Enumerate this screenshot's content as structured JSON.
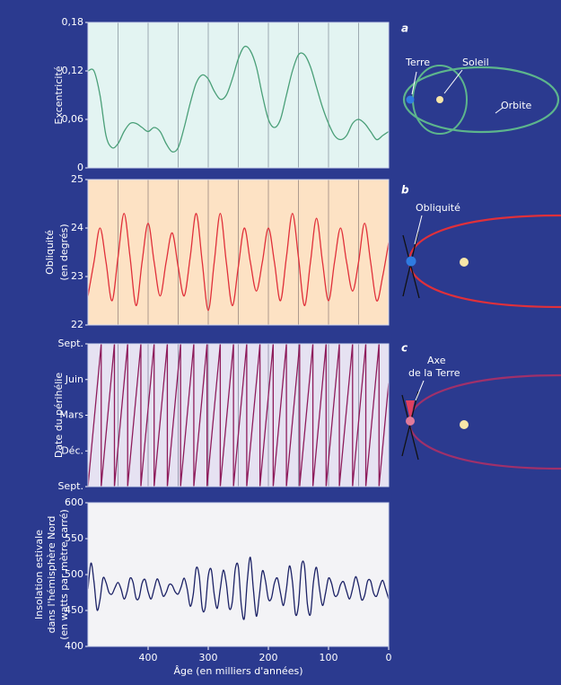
{
  "chart_data": [
    {
      "type": "line",
      "smooth": true,
      "panel": "a",
      "ylabel": [
        "Excentricité"
      ],
      "background": "#e3f4f2",
      "color": "#4a9f78",
      "grid_color": "#8a97a0",
      "xlim": [
        500,
        0
      ],
      "xgrid": [
        450,
        400,
        350,
        300,
        250,
        200,
        150,
        100,
        50
      ],
      "ylim": [
        0,
        0.18
      ],
      "yticks": [
        0,
        {
          "value": 0.06,
          "label": "0,06"
        },
        {
          "value": 0.12,
          "label": "0,12"
        },
        {
          "value": 0.18,
          "label": "0,18"
        }
      ],
      "annotations": [
        "Terre",
        "Soleil",
        "Orbite"
      ],
      "x": [
        500,
        490,
        480,
        470,
        460,
        450,
        440,
        430,
        420,
        410,
        400,
        390,
        380,
        370,
        360,
        350,
        340,
        330,
        320,
        310,
        300,
        290,
        280,
        270,
        260,
        250,
        240,
        230,
        220,
        210,
        200,
        190,
        180,
        170,
        160,
        150,
        140,
        130,
        120,
        110,
        100,
        90,
        80,
        70,
        60,
        50,
        40,
        30,
        20,
        10,
        0
      ],
      "values": [
        0.12,
        0.12,
        0.09,
        0.04,
        0.025,
        0.03,
        0.045,
        0.055,
        0.055,
        0.05,
        0.045,
        0.05,
        0.045,
        0.03,
        0.02,
        0.025,
        0.05,
        0.08,
        0.105,
        0.115,
        0.11,
        0.095,
        0.085,
        0.09,
        0.11,
        0.135,
        0.15,
        0.145,
        0.125,
        0.09,
        0.06,
        0.05,
        0.06,
        0.09,
        0.12,
        0.14,
        0.14,
        0.125,
        0.1,
        0.075,
        0.055,
        0.04,
        0.035,
        0.04,
        0.055,
        0.06,
        0.055,
        0.045,
        0.035,
        0.04,
        0.045
      ]
    },
    {
      "type": "line",
      "smooth": true,
      "panel": "b",
      "ylabel": [
        "Obliquité",
        "(en degrés)"
      ],
      "background": "#fde2c4",
      "color": "#e0303a",
      "grid_color": "#9a8a80",
      "xlim": [
        500,
        0
      ],
      "xgrid": [
        450,
        400,
        350,
        300,
        250,
        200,
        150,
        100,
        50
      ],
      "ylim": [
        22,
        25
      ],
      "yticks": [
        22,
        23,
        24,
        25
      ],
      "annotations": [
        "Obliquité"
      ],
      "x": [
        500,
        490,
        480,
        470,
        460,
        450,
        440,
        430,
        420,
        410,
        400,
        390,
        380,
        370,
        360,
        350,
        340,
        330,
        320,
        310,
        300,
        290,
        280,
        270,
        260,
        250,
        240,
        230,
        220,
        210,
        200,
        190,
        180,
        170,
        160,
        150,
        140,
        130,
        120,
        110,
        100,
        90,
        80,
        70,
        60,
        50,
        40,
        30,
        20,
        10,
        0
      ],
      "values": [
        22.6,
        23.3,
        24.0,
        23.3,
        22.5,
        23.4,
        24.3,
        23.4,
        22.4,
        23.3,
        24.1,
        23.3,
        22.6,
        23.3,
        23.9,
        23.2,
        22.6,
        23.4,
        24.3,
        23.3,
        22.3,
        23.3,
        24.3,
        23.3,
        22.4,
        23.2,
        24.0,
        23.3,
        22.7,
        23.3,
        24.0,
        23.3,
        22.5,
        23.4,
        24.3,
        23.4,
        22.4,
        23.3,
        24.2,
        23.3,
        22.5,
        23.3,
        24.0,
        23.3,
        22.7,
        23.3,
        24.1,
        23.3,
        22.5,
        23.0,
        23.7
      ]
    },
    {
      "type": "line",
      "smooth": false,
      "panel": "c",
      "ylabel": [
        "Date du périhélie"
      ],
      "background": "#e6e2f2",
      "color": "#8e1c5c",
      "grid_color": "#8a8aa0",
      "xlim": [
        500,
        0
      ],
      "xgrid": [
        450,
        400,
        350,
        300,
        250,
        200,
        150,
        100,
        50
      ],
      "ylim": [
        0,
        12
      ],
      "yticks": [
        {
          "value": 0,
          "label": "Sept."
        },
        {
          "value": 3,
          "label": "Déc."
        },
        {
          "value": 6,
          "label": "Mars"
        },
        {
          "value": 9,
          "label": "Juin"
        },
        {
          "value": 12,
          "label": "Sept."
        }
      ],
      "annotations": [
        "Axe",
        "de la Terre"
      ],
      "x": [
        500,
        478,
        478,
        456,
        456,
        434,
        434,
        412,
        412,
        390,
        390,
        368,
        368,
        346,
        346,
        324,
        324,
        302,
        302,
        280,
        280,
        258,
        258,
        236,
        236,
        214,
        214,
        192,
        192,
        170,
        170,
        148,
        148,
        126,
        126,
        104,
        104,
        82,
        82,
        60,
        60,
        38,
        38,
        16,
        16,
        0
      ],
      "values": [
        0,
        12,
        0,
        12,
        0,
        12,
        0,
        12,
        0,
        12,
        0,
        12,
        0,
        12,
        0,
        12,
        0,
        12,
        0,
        12,
        0,
        12,
        0,
        12,
        0,
        12,
        0,
        12,
        0,
        12,
        0,
        12,
        0,
        12,
        0,
        12,
        0,
        12,
        0,
        12,
        0,
        12,
        0,
        12,
        0,
        8.7
      ]
    },
    {
      "type": "line",
      "smooth": true,
      "ylabel": [
        "Insolation estivale",
        "dans l'hémisphère Nord",
        "(en watts par mètre carré)"
      ],
      "background": "#f3f3f6",
      "color": "#1c2266",
      "xlim": [
        500,
        0
      ],
      "xticks": [
        400,
        300,
        200,
        100,
        0
      ],
      "xlabel": "Âge (en milliers d'années)",
      "ylim": [
        400,
        600
      ],
      "yticks": [
        400,
        450,
        500,
        550,
        600
      ],
      "x": [
        500,
        495,
        490,
        485,
        480,
        475,
        470,
        465,
        460,
        455,
        450,
        445,
        440,
        435,
        430,
        425,
        420,
        415,
        410,
        405,
        400,
        395,
        390,
        385,
        380,
        375,
        370,
        365,
        360,
        355,
        350,
        345,
        340,
        335,
        330,
        325,
        320,
        315,
        310,
        305,
        300,
        295,
        290,
        285,
        280,
        275,
        270,
        265,
        260,
        255,
        250,
        245,
        240,
        235,
        230,
        225,
        220,
        215,
        210,
        205,
        200,
        195,
        190,
        185,
        180,
        175,
        170,
        165,
        160,
        155,
        150,
        145,
        140,
        135,
        130,
        125,
        120,
        115,
        110,
        105,
        100,
        95,
        90,
        85,
        80,
        75,
        70,
        65,
        60,
        55,
        50,
        45,
        40,
        35,
        30,
        25,
        20,
        15,
        10,
        5,
        0
      ],
      "values": [
        480,
        516,
        490,
        451,
        465,
        495,
        489,
        475,
        473,
        482,
        489,
        480,
        466,
        476,
        495,
        489,
        467,
        468,
        488,
        493,
        476,
        466,
        480,
        494,
        484,
        470,
        475,
        486,
        485,
        476,
        473,
        483,
        495,
        480,
        456,
        472,
        509,
        498,
        453,
        454,
        498,
        507,
        472,
        453,
        480,
        506,
        488,
        453,
        462,
        508,
        511,
        457,
        439,
        492,
        524,
        480,
        442,
        471,
        505,
        492,
        466,
        467,
        488,
        495,
        475,
        457,
        480,
        512,
        490,
        445,
        457,
        512,
        512,
        458,
        445,
        490,
        510,
        480,
        457,
        474,
        495,
        488,
        471,
        472,
        486,
        490,
        477,
        466,
        480,
        497,
        485,
        465,
        471,
        491,
        491,
        474,
        470,
        483,
        492,
        480,
        466
      ]
    }
  ]
}
